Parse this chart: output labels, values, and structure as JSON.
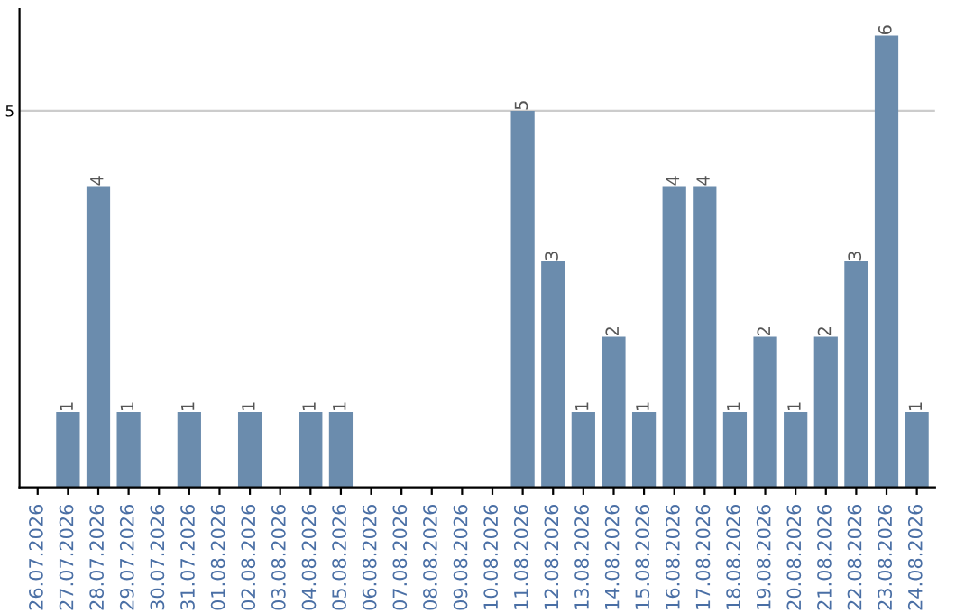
{
  "chart_data": {
    "type": "bar",
    "categories": [
      "26.07.2026",
      "27.07.2026",
      "28.07.2026",
      "29.07.2026",
      "30.07.2026",
      "31.07.2026",
      "01.08.2026",
      "02.08.2026",
      "03.08.2026",
      "04.08.2026",
      "05.08.2026",
      "06.08.2026",
      "07.08.2026",
      "08.08.2026",
      "09.08.2026",
      "10.08.2026",
      "11.08.2026",
      "12.08.2026",
      "13.08.2026",
      "14.08.2026",
      "15.08.2026",
      "16.08.2026",
      "17.08.2026",
      "18.08.2026",
      "19.08.2026",
      "20.08.2026",
      "21.08.2026",
      "22.08.2026",
      "23.08.2026",
      "24.08.2026"
    ],
    "values": [
      0,
      1,
      4,
      1,
      0,
      1,
      0,
      1,
      0,
      1,
      1,
      0,
      0,
      0,
      0,
      0,
      5,
      3,
      1,
      2,
      1,
      4,
      4,
      1,
      2,
      1,
      2,
      3,
      6,
      1
    ],
    "value_labels": [
      null,
      "1",
      "4",
      "1",
      null,
      "1",
      null,
      "1",
      null,
      "1",
      "1",
      null,
      null,
      null,
      null,
      null,
      "5",
      "3",
      "1",
      "2",
      "1",
      "4",
      "4",
      "1",
      "2",
      "1",
      "2",
      "3",
      "6",
      "1"
    ],
    "color": "#6b8cad",
    "ylim": [
      0,
      6.35
    ],
    "yticks": [
      5
    ],
    "grid": "y"
  }
}
